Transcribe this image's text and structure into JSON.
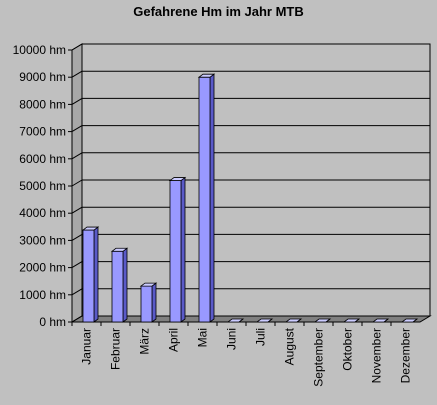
{
  "chart_data": {
    "type": "bar",
    "title": "Gefahrene Hm im Jahr MTB",
    "categories": [
      "Januar",
      "Februar",
      "März",
      "April",
      "Mai",
      "Juni",
      "Juli",
      "August",
      "September",
      "Oktober",
      "November",
      "Dezember"
    ],
    "values": [
      3380,
      2600,
      1320,
      5200,
      9000,
      0,
      0,
      0,
      0,
      0,
      0,
      0
    ],
    "y_unit": "hm",
    "ylim": [
      0,
      10000
    ],
    "yticks": [
      "0 hm",
      "1000 hm",
      "2000 hm",
      "3000 hm",
      "4000 hm",
      "5000 hm",
      "6000 hm",
      "7000 hm",
      "8000 hm",
      "9000 hm",
      "10000 hm"
    ],
    "grid": true,
    "legend": "none",
    "colors": {
      "bar_front": "#9999ff",
      "bar_top": "#ccccff",
      "bar_side": "#5a5ac8",
      "background": "#c0c0c0",
      "wall": "#c0c0c0",
      "floor": "#808080",
      "gridline": "#000000"
    }
  }
}
